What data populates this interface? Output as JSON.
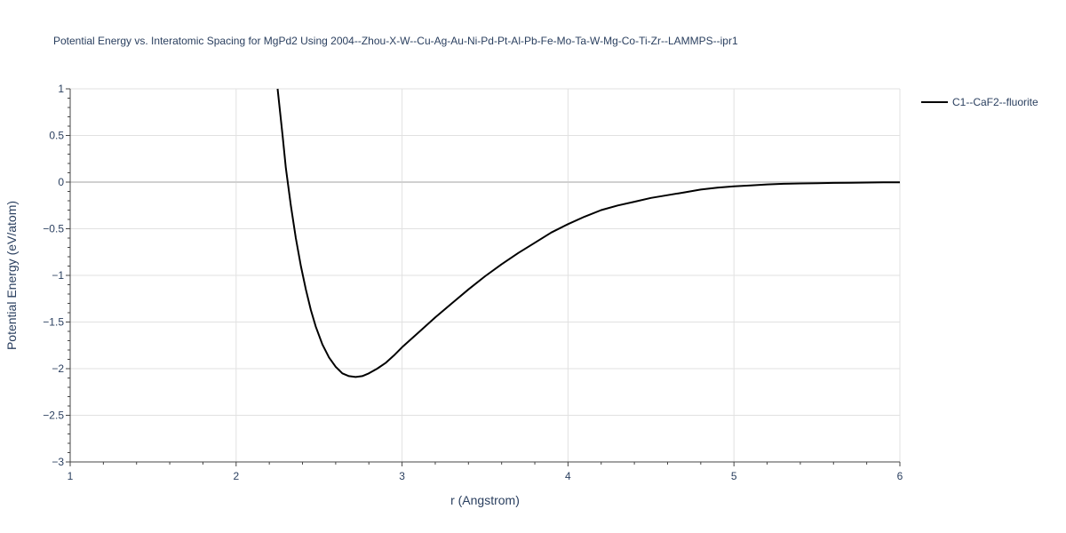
{
  "chart_data": {
    "type": "line",
    "title": "Potential Energy vs. Interatomic Spacing for MgPd2 Using 2004--Zhou-X-W--Cu-Ag-Au-Ni-Pd-Pt-Al-Pb-Fe-Mo-Ta-W-Mg-Co-Ti-Zr--LAMMPS--ipr1",
    "xlabel": "r (Angstrom)",
    "ylabel": "Potential Energy (eV/atom)",
    "xlim": [
      1,
      6
    ],
    "ylim": [
      -3,
      1
    ],
    "grid": true,
    "legend_position": "top-right",
    "x_ticks": [
      1,
      2,
      3,
      4,
      5,
      6
    ],
    "x_tick_labels": [
      "1",
      "2",
      "3",
      "4",
      "5",
      "6"
    ],
    "y_ticks": [
      1,
      0.5,
      0,
      -0.5,
      -1,
      -1.5,
      -2,
      -2.5,
      -3
    ],
    "y_tick_labels": [
      "1",
      "0.5",
      "0",
      "−0.5",
      "−1",
      "−1.5",
      "−2",
      "−2.5",
      "−3"
    ],
    "series": [
      {
        "name": "C1--CaF2--fluorite",
        "color": "#000000",
        "x": [
          2.25,
          2.28,
          2.3,
          2.33,
          2.36,
          2.39,
          2.42,
          2.45,
          2.48,
          2.52,
          2.56,
          2.6,
          2.64,
          2.68,
          2.72,
          2.76,
          2.8,
          2.85,
          2.9,
          2.95,
          3.0,
          3.1,
          3.2,
          3.3,
          3.4,
          3.5,
          3.6,
          3.7,
          3.8,
          3.9,
          4.0,
          4.1,
          4.2,
          4.3,
          4.4,
          4.5,
          4.6,
          4.7,
          4.8,
          4.9,
          5.0,
          5.1,
          5.2,
          5.3,
          5.4,
          5.5,
          5.6,
          5.7,
          5.8,
          5.9,
          6.0
        ],
        "y": [
          1.0,
          0.5,
          0.15,
          -0.25,
          -0.6,
          -0.9,
          -1.15,
          -1.37,
          -1.55,
          -1.74,
          -1.88,
          -1.98,
          -2.05,
          -2.08,
          -2.09,
          -2.08,
          -2.05,
          -2.0,
          -1.94,
          -1.86,
          -1.77,
          -1.61,
          -1.45,
          -1.3,
          -1.15,
          -1.01,
          -0.88,
          -0.76,
          -0.65,
          -0.54,
          -0.45,
          -0.37,
          -0.3,
          -0.25,
          -0.21,
          -0.17,
          -0.14,
          -0.11,
          -0.08,
          -0.06,
          -0.045,
          -0.035,
          -0.025,
          -0.018,
          -0.014,
          -0.011,
          -0.009,
          -0.007,
          -0.005,
          -0.003,
          -0.002
        ]
      }
    ]
  }
}
